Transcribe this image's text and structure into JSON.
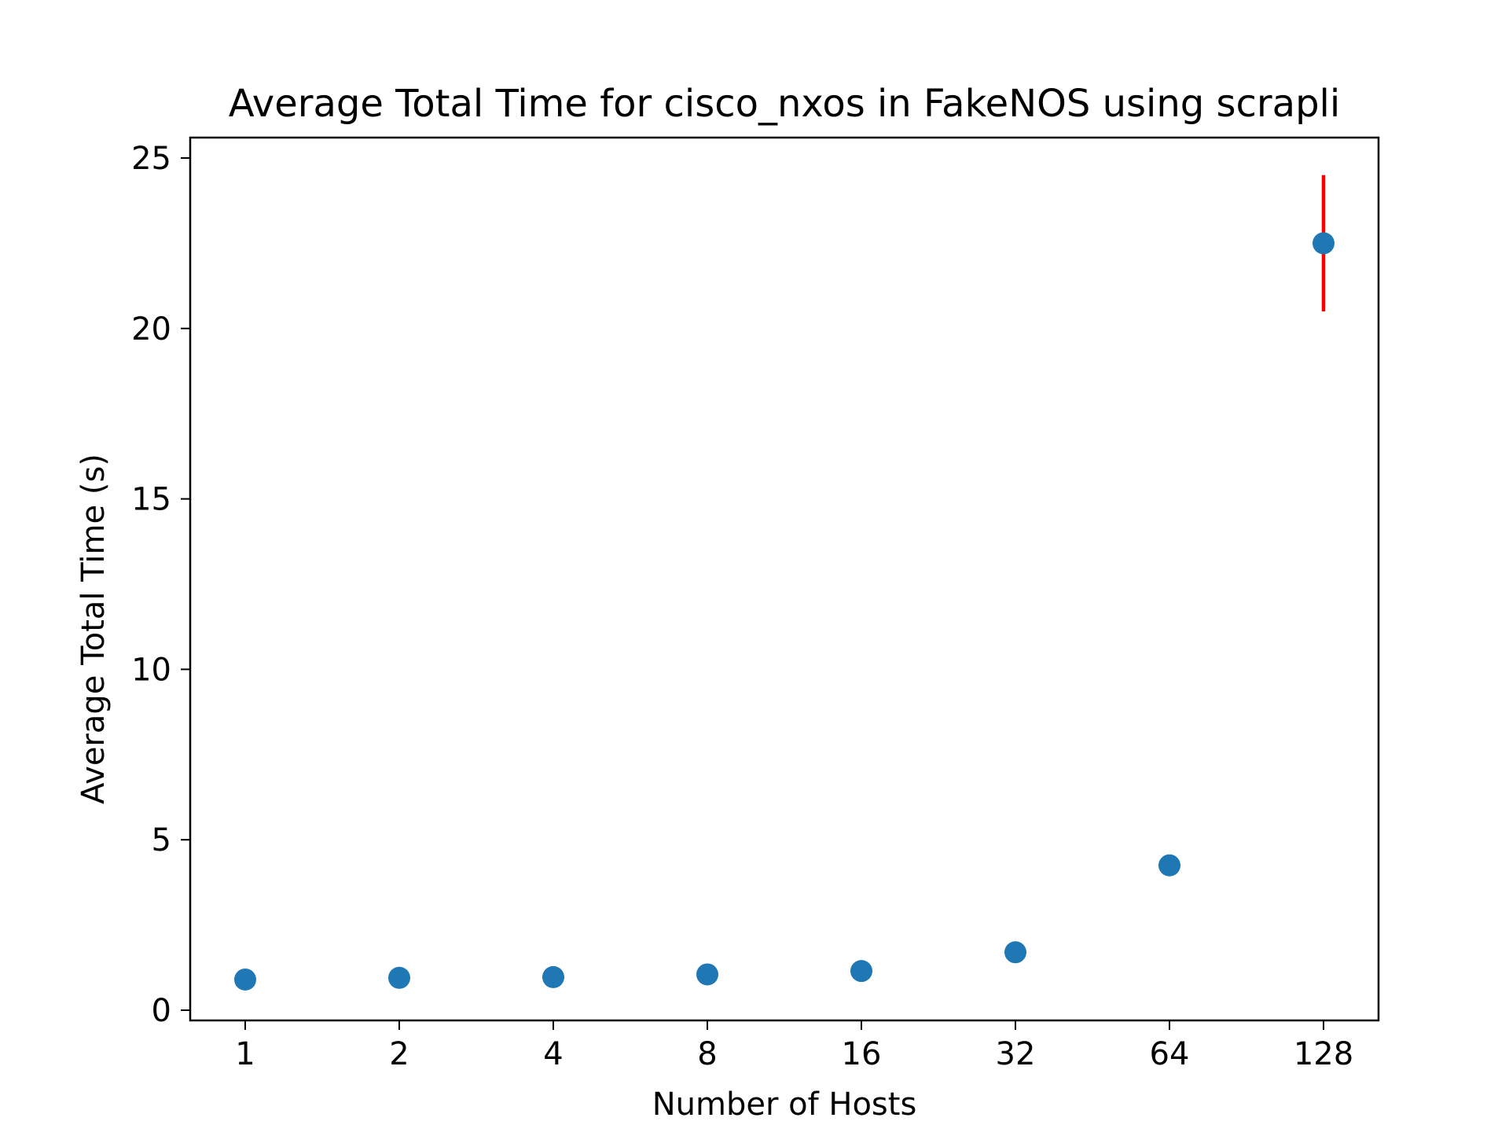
{
  "chart_data": {
    "type": "scatter",
    "title": "Average Total Time for cisco_nxos in FakeNOS using scrapli",
    "xlabel": "Number of Hosts",
    "ylabel": "Average Total Time (s)",
    "x_scale": "log2",
    "x": [
      1,
      2,
      4,
      8,
      16,
      32,
      64,
      128
    ],
    "x_tick_labels": [
      "1",
      "2",
      "4",
      "8",
      "16",
      "32",
      "64",
      "128"
    ],
    "y": [
      0.9,
      0.95,
      0.97,
      1.05,
      1.15,
      1.7,
      4.25,
      22.5
    ],
    "error_high": [
      null,
      null,
      null,
      null,
      null,
      null,
      null,
      24.5
    ],
    "error_low": [
      null,
      null,
      null,
      null,
      null,
      null,
      null,
      20.5
    ],
    "y_ticks": [
      0,
      5,
      10,
      15,
      20,
      25
    ],
    "y_tick_labels": [
      "0",
      "5",
      "10",
      "15",
      "20",
      "25"
    ],
    "ylim": [
      -0.3,
      25.6
    ],
    "grid": false,
    "colors": {
      "points": "#1f77b4",
      "error_bar": "#ff0000",
      "axes": "#000000"
    }
  }
}
